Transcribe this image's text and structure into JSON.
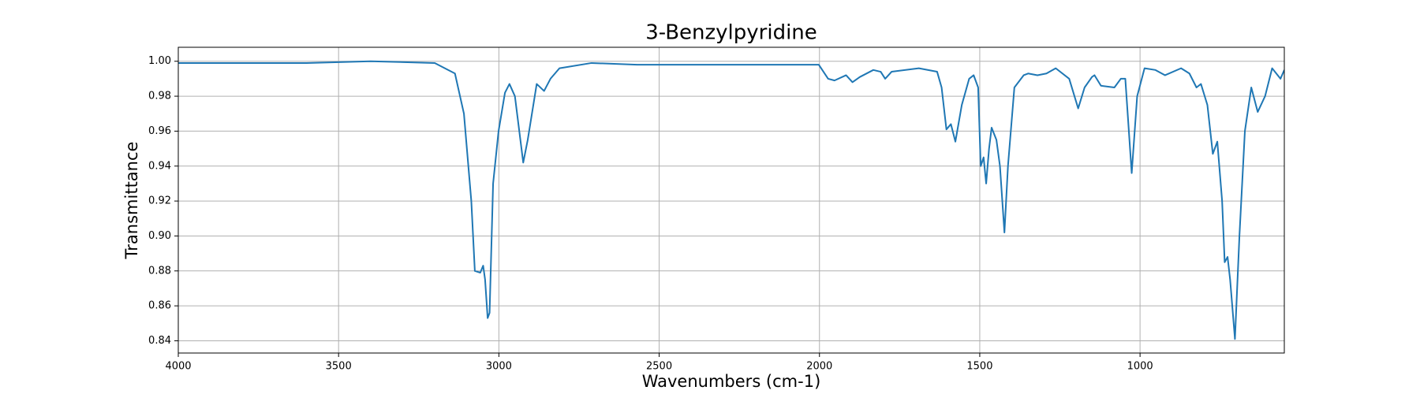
{
  "chart_data": {
    "type": "line",
    "title": "3-Benzylpyridine",
    "x_label": "Wavenumbers (cm-1)",
    "y_label": "Transmittance",
    "color": "#1f77b4",
    "grid": true,
    "xlim": [
      4000,
      550
    ],
    "ylim": [
      0.833,
      1.008
    ],
    "xticks": [
      4000,
      3500,
      3000,
      2500,
      2000,
      1500,
      1000
    ],
    "yticks": [
      0.84,
      0.86,
      0.88,
      {
        "value": 0.9,
        "label": "0.90"
      },
      0.92,
      0.94,
      0.96,
      0.98,
      {
        "value": 1.0,
        "label": "1.00"
      }
    ],
    "x": [
      4000,
      3800,
      3600,
      3400,
      3200,
      3137,
      3109,
      3086,
      3075,
      3058,
      3049,
      3043,
      3035,
      3029,
      3018,
      3001,
      2981,
      2967,
      2950,
      2924,
      2910,
      2882,
      2859,
      2839,
      2811,
      2711,
      2569,
      2300,
      2002,
      1973,
      1953,
      1917,
      1897,
      1874,
      1832,
      1809,
      1795,
      1775,
      1690,
      1633,
      1619,
      1604,
      1590,
      1576,
      1556,
      1533,
      1519,
      1505,
      1497,
      1488,
      1480,
      1471,
      1463,
      1448,
      1437,
      1423,
      1412,
      1392,
      1363,
      1349,
      1320,
      1292,
      1263,
      1221,
      1193,
      1173,
      1150,
      1142,
      1122,
      1080,
      1060,
      1046,
      1026,
      1009,
      986,
      952,
      922,
      872,
      846,
      824,
      810,
      790,
      773,
      759,
      744,
      736,
      727,
      719,
      704,
      690,
      673,
      653,
      633,
      610,
      588,
      562,
      550
    ],
    "values": [
      0.999,
      0.999,
      0.999,
      1.0,
      0.999,
      0.993,
      0.97,
      0.92,
      0.88,
      0.879,
      0.883,
      0.875,
      0.853,
      0.856,
      0.93,
      0.96,
      0.982,
      0.987,
      0.98,
      0.942,
      0.955,
      0.987,
      0.983,
      0.99,
      0.996,
      0.999,
      0.998,
      0.998,
      0.998,
      0.99,
      0.989,
      0.992,
      0.988,
      0.991,
      0.995,
      0.994,
      0.99,
      0.994,
      0.996,
      0.994,
      0.985,
      0.961,
      0.964,
      0.954,
      0.975,
      0.99,
      0.992,
      0.985,
      0.94,
      0.945,
      0.93,
      0.95,
      0.962,
      0.955,
      0.94,
      0.902,
      0.94,
      0.985,
      0.992,
      0.993,
      0.992,
      0.993,
      0.996,
      0.99,
      0.973,
      0.985,
      0.991,
      0.992,
      0.986,
      0.985,
      0.99,
      0.99,
      0.936,
      0.98,
      0.996,
      0.995,
      0.992,
      0.996,
      0.993,
      0.985,
      0.987,
      0.975,
      0.947,
      0.954,
      0.92,
      0.885,
      0.888,
      0.875,
      0.841,
      0.9,
      0.96,
      0.985,
      0.971,
      0.98,
      0.996,
      0.99,
      0.995
    ]
  }
}
